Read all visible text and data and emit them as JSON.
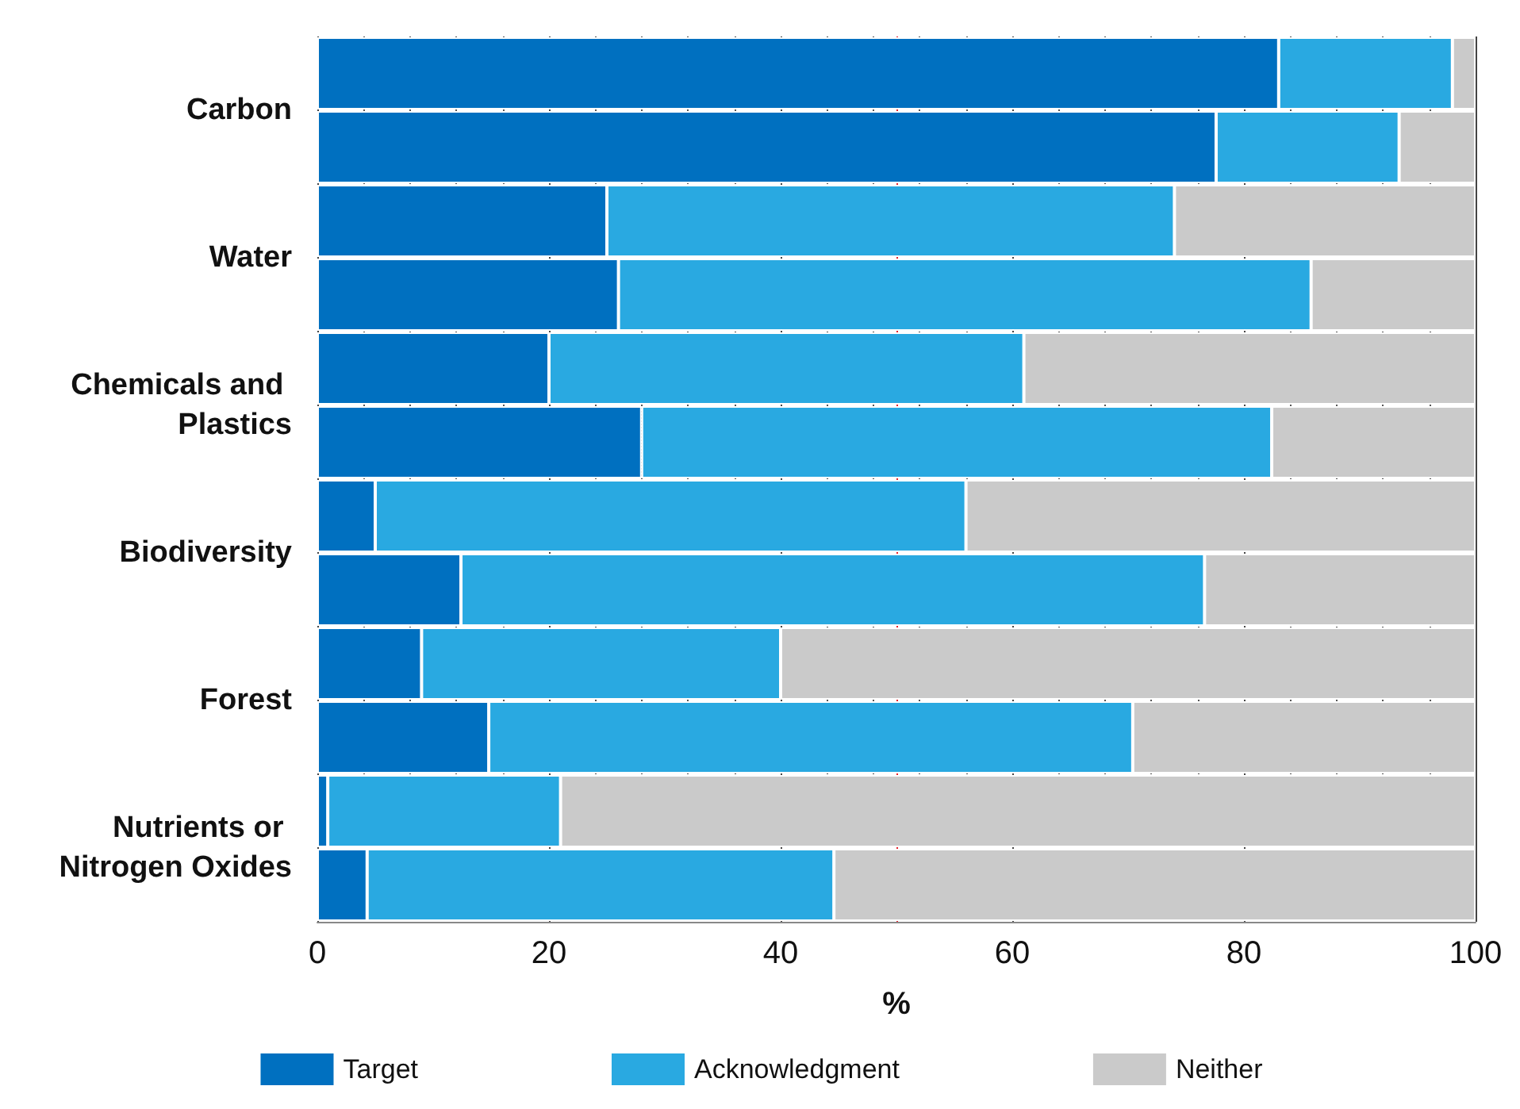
{
  "chart_data": {
    "type": "bar",
    "orientation": "horizontal",
    "stacked": true,
    "xlabel": "%",
    "categories": [
      "Carbon",
      null,
      "Water",
      null,
      "Chemicals and Plastics",
      null,
      "Biodiversity",
      null,
      "Forest",
      null,
      "Nutrients or Nitrogen Oxides",
      null
    ],
    "series": [
      {
        "name": "Target",
        "color": "#0070c0",
        "values": [
          83,
          77.6,
          25,
          26,
          20,
          28,
          5,
          12.4,
          9,
          14.8,
          0.9,
          4.3
        ]
      },
      {
        "name": "Acknowledgment",
        "color": "#29a9e1",
        "values": [
          15,
          15.8,
          49,
          59.8,
          41,
          54.4,
          51,
          64.2,
          31,
          55.6,
          20.1,
          40.3
        ]
      },
      {
        "name": "Neither",
        "color": "#cacaca",
        "values": [
          2,
          6.6,
          26,
          14.2,
          39,
          17.6,
          44,
          23.4,
          60,
          29.6,
          79,
          55.4
        ]
      }
    ],
    "xlim": [
      0,
      100
    ],
    "xticks": [
      0,
      20,
      40,
      60,
      80,
      100
    ],
    "grid": "x",
    "legend": "bottom",
    "ref_lines": [
      {
        "axis": "x",
        "value": 50,
        "color": "#e8202a"
      }
    ]
  }
}
